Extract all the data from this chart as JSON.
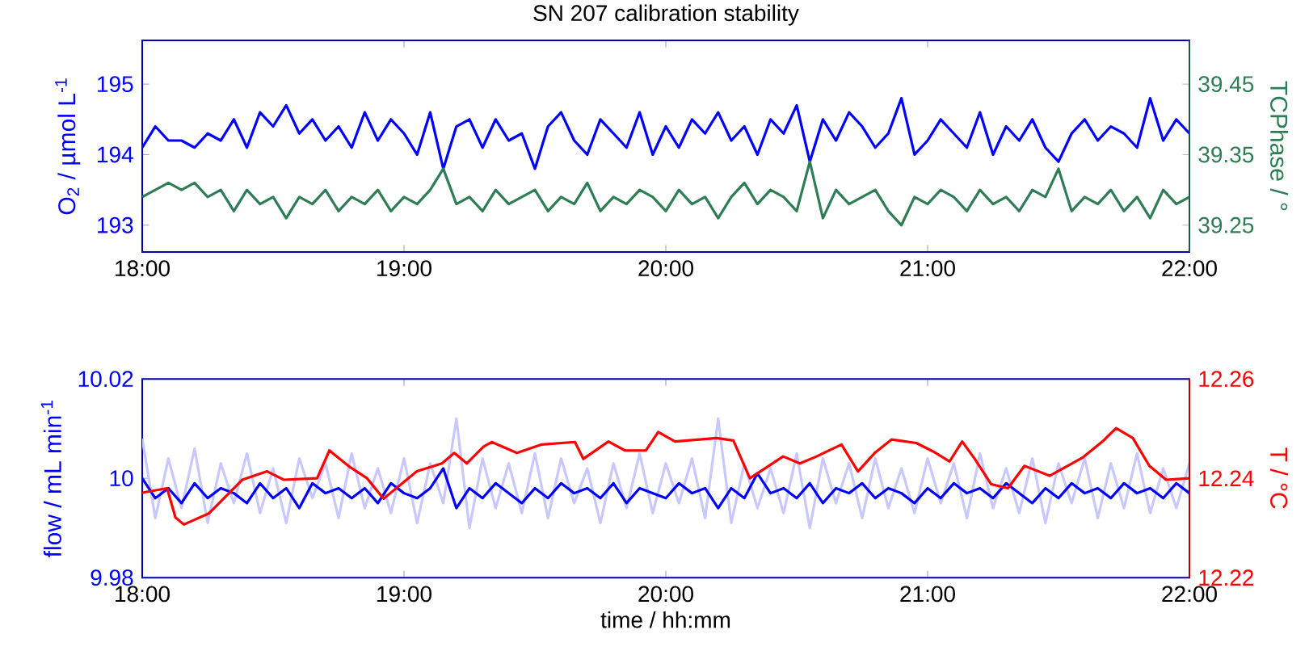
{
  "chart_data": [
    {
      "type": "line",
      "title": "SN 207 calibration stability",
      "ylabel": "O$_{2}$ / µmol L$^{-1}$",
      "y2label": "TCPhase / °",
      "x": [
        18,
        18.05,
        18.1,
        18.15,
        18.2,
        18.25,
        18.3,
        18.35,
        18.4,
        18.45,
        18.5,
        18.55,
        18.6,
        18.65,
        18.7,
        18.75,
        18.8,
        18.85,
        18.9,
        18.95,
        19,
        19.05,
        19.1,
        19.15,
        19.2,
        19.25,
        19.3,
        19.35,
        19.4,
        19.45,
        19.5,
        19.55,
        19.6,
        19.65,
        19.7,
        19.75,
        19.8,
        19.85,
        19.9,
        19.95,
        20,
        20.05,
        20.1,
        20.15,
        20.2,
        20.25,
        20.3,
        20.35,
        20.4,
        20.45,
        20.5,
        20.55,
        20.6,
        20.65,
        20.7,
        20.75,
        20.8,
        20.85,
        20.9,
        20.95,
        21,
        21.05,
        21.1,
        21.15,
        21.2,
        21.25,
        21.3,
        21.35,
        21.4,
        21.45,
        21.5,
        21.55,
        21.6,
        21.65,
        21.7,
        21.75,
        21.8,
        21.85,
        21.9,
        21.95,
        22
      ],
      "series": [
        {
          "color": "#2e7d55",
          "axis": "y2",
          "values": [
            39.29,
            39.3,
            39.31,
            39.3,
            39.31,
            39.29,
            39.3,
            39.27,
            39.3,
            39.28,
            39.29,
            39.26,
            39.29,
            39.28,
            39.3,
            39.27,
            39.29,
            39.28,
            39.3,
            39.27,
            39.29,
            39.28,
            39.3,
            39.33,
            39.28,
            39.29,
            39.27,
            39.3,
            39.28,
            39.29,
            39.3,
            39.27,
            39.29,
            39.28,
            39.31,
            39.27,
            39.29,
            39.28,
            39.3,
            39.29,
            39.27,
            39.3,
            39.28,
            39.29,
            39.26,
            39.29,
            39.31,
            39.28,
            39.3,
            39.29,
            39.27,
            39.34,
            39.26,
            39.3,
            39.28,
            39.29,
            39.3,
            39.27,
            39.25,
            39.29,
            39.28,
            39.3,
            39.29,
            39.27,
            39.3,
            39.28,
            39.29,
            39.27,
            39.3,
            39.29,
            39.33,
            39.27,
            39.29,
            39.28,
            39.3,
            39.27,
            39.29,
            39.26,
            39.3,
            39.28,
            39.29
          ]
        },
        {
          "color": "#0000ff",
          "axis": "y",
          "values": [
            194.1,
            194.4,
            194.2,
            194.2,
            194.1,
            194.3,
            194.2,
            194.5,
            194.1,
            194.6,
            194.4,
            194.7,
            194.3,
            194.5,
            194.2,
            194.4,
            194.1,
            194.6,
            194.2,
            194.5,
            194.3,
            194.0,
            194.6,
            193.8,
            194.4,
            194.5,
            194.1,
            194.5,
            194.2,
            194.3,
            193.8,
            194.4,
            194.6,
            194.2,
            194.0,
            194.5,
            194.3,
            194.1,
            194.6,
            194.0,
            194.4,
            194.1,
            194.5,
            194.3,
            194.6,
            194.2,
            194.4,
            194.0,
            194.5,
            194.3,
            194.7,
            193.9,
            194.5,
            194.2,
            194.6,
            194.4,
            194.1,
            194.3,
            194.8,
            194.0,
            194.2,
            194.5,
            194.3,
            194.1,
            194.6,
            194.0,
            194.4,
            194.2,
            194.5,
            194.1,
            193.9,
            194.3,
            194.5,
            194.2,
            194.4,
            194.3,
            194.1,
            194.8,
            194.2,
            194.5,
            194.3
          ]
        }
      ],
      "xlim": [
        18,
        22
      ],
      "xticks": [
        {
          "value": 18,
          "label": "18:00"
        },
        {
          "value": 19,
          "label": "19:00"
        },
        {
          "value": 20,
          "label": "20:00"
        },
        {
          "value": 21,
          "label": "21:00"
        },
        {
          "value": 22,
          "label": "22:00"
        }
      ],
      "ylim": [
        192.62,
        195.62
      ],
      "yticks": [
        193,
        194,
        195
      ],
      "y2lim": [
        39.212,
        39.512
      ],
      "y2ticks": [
        39.25,
        39.35,
        39.45
      ]
    },
    {
      "type": "line",
      "xlabel": "time / hh:mm",
      "ylabel": "flow / mL min$^{-1}$",
      "y2label": "T / °C",
      "x": [
        18,
        18.05,
        18.1,
        18.15,
        18.2,
        18.25,
        18.3,
        18.35,
        18.4,
        18.45,
        18.5,
        18.55,
        18.6,
        18.65,
        18.7,
        18.75,
        18.8,
        18.85,
        18.9,
        18.95,
        19,
        19.05,
        19.1,
        19.15,
        19.2,
        19.25,
        19.3,
        19.35,
        19.4,
        19.45,
        19.5,
        19.55,
        19.6,
        19.65,
        19.7,
        19.75,
        19.8,
        19.85,
        19.9,
        19.95,
        20,
        20.05,
        20.1,
        20.15,
        20.2,
        20.25,
        20.3,
        20.35,
        20.4,
        20.45,
        20.5,
        20.55,
        20.6,
        20.65,
        20.7,
        20.75,
        20.8,
        20.85,
        20.9,
        20.95,
        21,
        21.05,
        21.1,
        21.15,
        21.2,
        21.25,
        21.3,
        21.35,
        21.4,
        21.45,
        21.5,
        21.55,
        21.6,
        21.65,
        21.7,
        21.75,
        21.8,
        21.85,
        21.9,
        21.95,
        22
      ],
      "series": [
        {
          "color": "#c8c8ff",
          "axis": "y",
          "values": [
            10.008,
            9.992,
            10.004,
            9.994,
            10.006,
            9.991,
            10.003,
            9.995,
            10.005,
            9.993,
            10.002,
            9.991,
            10.004,
            9.996,
            10.003,
            9.992,
            10.005,
            9.994,
            10.002,
            9.993,
            10.004,
            9.991,
            10.003,
            9.995,
            10.012,
            9.99,
            10.004,
            9.994,
            10.003,
            9.993,
            10.005,
            9.992,
            10.004,
            9.995,
            10.002,
            9.991,
            10.003,
            9.994,
            10.005,
            9.993,
            10.003,
            9.995,
            10.004,
            9.992,
            10.012,
            9.991,
            10.003,
            9.994,
            10.002,
            9.993,
            10.005,
            9.99,
            10.004,
            9.995,
            10.003,
            9.992,
            10.004,
            9.994,
            10.002,
            9.993,
            10.004,
            9.995,
            10.003,
            9.992,
            10.005,
            9.994,
            10.002,
            9.993,
            10.004,
            9.991,
            10.003,
            9.995,
            10.004,
            9.992,
            10.003,
            9.994,
            10.005,
            9.993,
            10.002,
            9.994,
            10.003
          ]
        },
        {
          "color": "#0000ff",
          "axis": "y",
          "values": [
            10.0,
            9.996,
            9.998,
            9.995,
            9.999,
            9.996,
            9.998,
            9.997,
            9.995,
            9.999,
            9.996,
            9.998,
            9.994,
            9.999,
            9.997,
            9.998,
            9.996,
            9.998,
            9.995,
            9.999,
            9.997,
            9.996,
            9.998,
            10.002,
            9.994,
            9.998,
            9.996,
            9.999,
            9.997,
            9.995,
            9.998,
            9.996,
            9.999,
            9.997,
            9.998,
            9.996,
            9.999,
            9.995,
            9.998,
            9.997,
            9.996,
            9.999,
            9.997,
            9.998,
            9.994,
            9.998,
            9.996,
            10.001,
            9.997,
            9.998,
            9.996,
            9.999,
            9.995,
            9.998,
            9.997,
            9.999,
            9.996,
            9.998,
            9.997,
            9.995,
            9.998,
            9.996,
            9.999,
            9.997,
            9.998,
            9.996,
            9.999,
            9.997,
            9.995,
            9.998,
            9.996,
            9.999,
            9.997,
            9.998,
            9.996,
            9.999,
            9.997,
            9.998,
            9.996,
            9.999,
            9.997
          ]
        },
        {
          "color": "#ff0000",
          "axis": "y2",
          "x": [
            18.0,
            18.095,
            18.127,
            18.159,
            18.254,
            18.382,
            18.477,
            18.541,
            18.668,
            18.715,
            18.795,
            18.859,
            18.922,
            19.049,
            19.145,
            19.192,
            19.24,
            19.304,
            19.335,
            19.431,
            19.526,
            19.653,
            19.685,
            19.781,
            19.844,
            19.924,
            19.971,
            20.035,
            20.194,
            20.258,
            20.321,
            20.385,
            20.448,
            20.512,
            20.576,
            20.671,
            20.734,
            20.798,
            20.862,
            20.957,
            21.021,
            21.084,
            21.132,
            21.18,
            21.243,
            21.307,
            21.37,
            21.466,
            21.593,
            21.672,
            21.72,
            21.784,
            21.847,
            21.911,
            22.0
          ],
          "values": [
            12.2371,
            12.238,
            12.2321,
            12.2307,
            12.2329,
            12.2397,
            12.2414,
            12.2397,
            12.24,
            12.2456,
            12.2422,
            12.24,
            12.2359,
            12.2414,
            12.243,
            12.2451,
            12.243,
            12.2464,
            12.2473,
            12.2451,
            12.2468,
            12.2473,
            12.2439,
            12.2474,
            12.2456,
            12.2456,
            12.2493,
            12.2474,
            12.2481,
            12.2476,
            12.24,
            12.2422,
            12.2444,
            12.243,
            12.2444,
            12.2468,
            12.2414,
            12.2451,
            12.2478,
            12.2471,
            12.2454,
            12.2434,
            12.2474,
            12.2439,
            12.2388,
            12.238,
            12.2425,
            12.2405,
            12.2442,
            12.2476,
            12.2501,
            12.2481,
            12.2425,
            12.2397,
            12.24
          ]
        }
      ],
      "xlim": [
        18,
        22
      ],
      "xticks": [
        {
          "value": 18,
          "label": "18:00"
        },
        {
          "value": 19,
          "label": "19:00"
        },
        {
          "value": 20,
          "label": "20:00"
        },
        {
          "value": 21,
          "label": "21:00"
        },
        {
          "value": 22,
          "label": "22:00"
        }
      ],
      "ylim": [
        9.98,
        10.02
      ],
      "yticks": [
        9.98,
        10,
        10.02
      ],
      "y2lim": [
        12.22,
        12.26
      ],
      "y2ticks": [
        12.22,
        12.24,
        12.26
      ]
    }
  ]
}
